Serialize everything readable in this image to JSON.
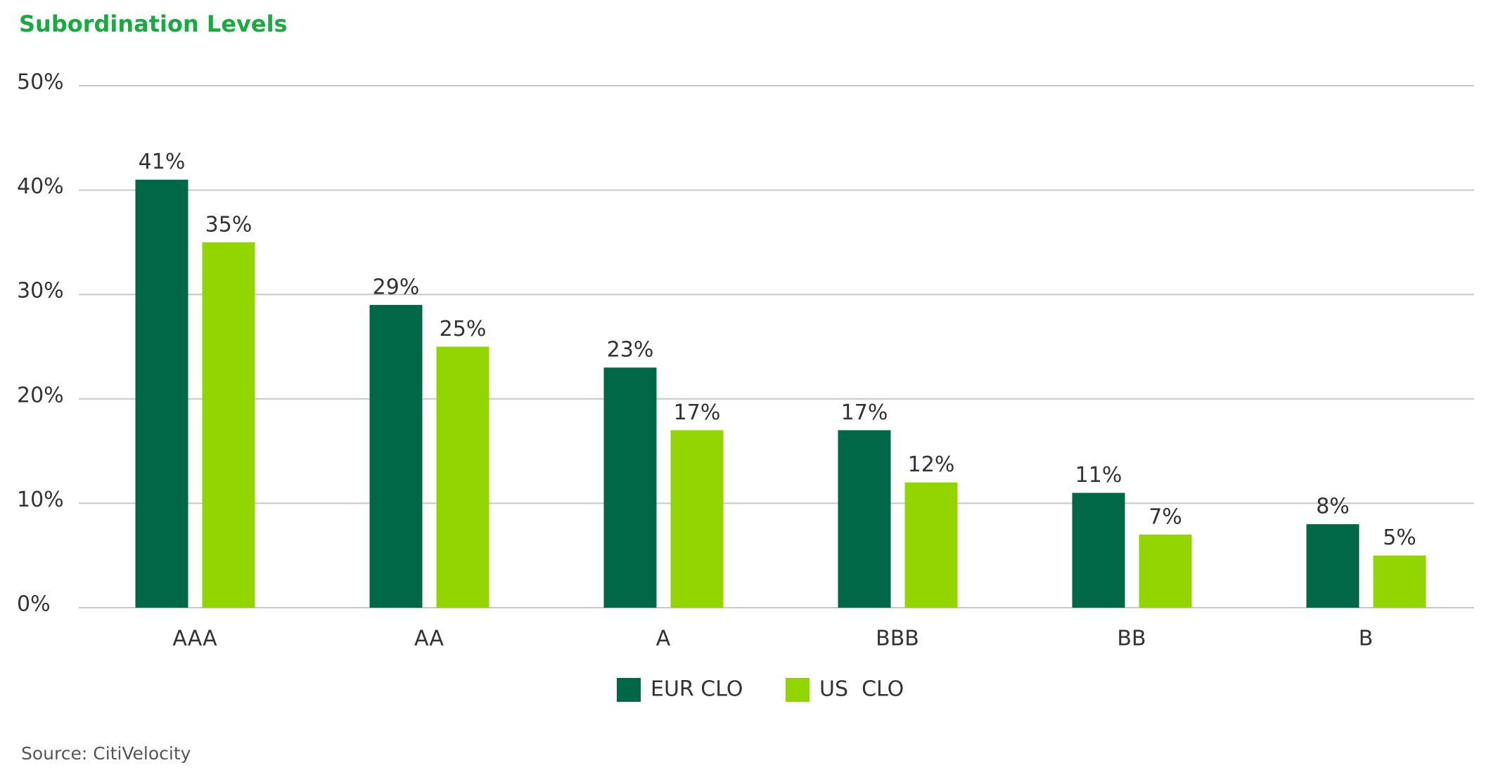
{
  "chart_data": {
    "type": "bar",
    "title": "Subordination Levels",
    "categories": [
      "AAA",
      "AA",
      "A",
      "BBB",
      "BB",
      "B"
    ],
    "series": [
      {
        "name": "EUR CLO",
        "color": "#006747",
        "values": [
          41,
          29,
          23,
          17,
          11,
          8
        ],
        "value_labels": [
          "41%",
          "29%",
          "23%",
          "17%",
          "11%",
          "8%"
        ]
      },
      {
        "name": "US  CLO",
        "color": "#93d500",
        "values": [
          35,
          25,
          17,
          12,
          7,
          5
        ],
        "value_labels": [
          "35%",
          "25%",
          "17%",
          "12%",
          "7%",
          "5%"
        ]
      }
    ],
    "ylim": [
      0,
      50
    ],
    "yticks": [
      {
        "value": 0,
        "label": "0%"
      },
      {
        "value": 10,
        "label": "10%"
      },
      {
        "value": 20,
        "label": "20%"
      },
      {
        "value": 30,
        "label": "30%"
      },
      {
        "value": 40,
        "label": "40%"
      },
      {
        "value": 50,
        "label": "50%"
      }
    ],
    "grid": true,
    "legend": "bottom",
    "source": "Source: CitiVelocity"
  }
}
